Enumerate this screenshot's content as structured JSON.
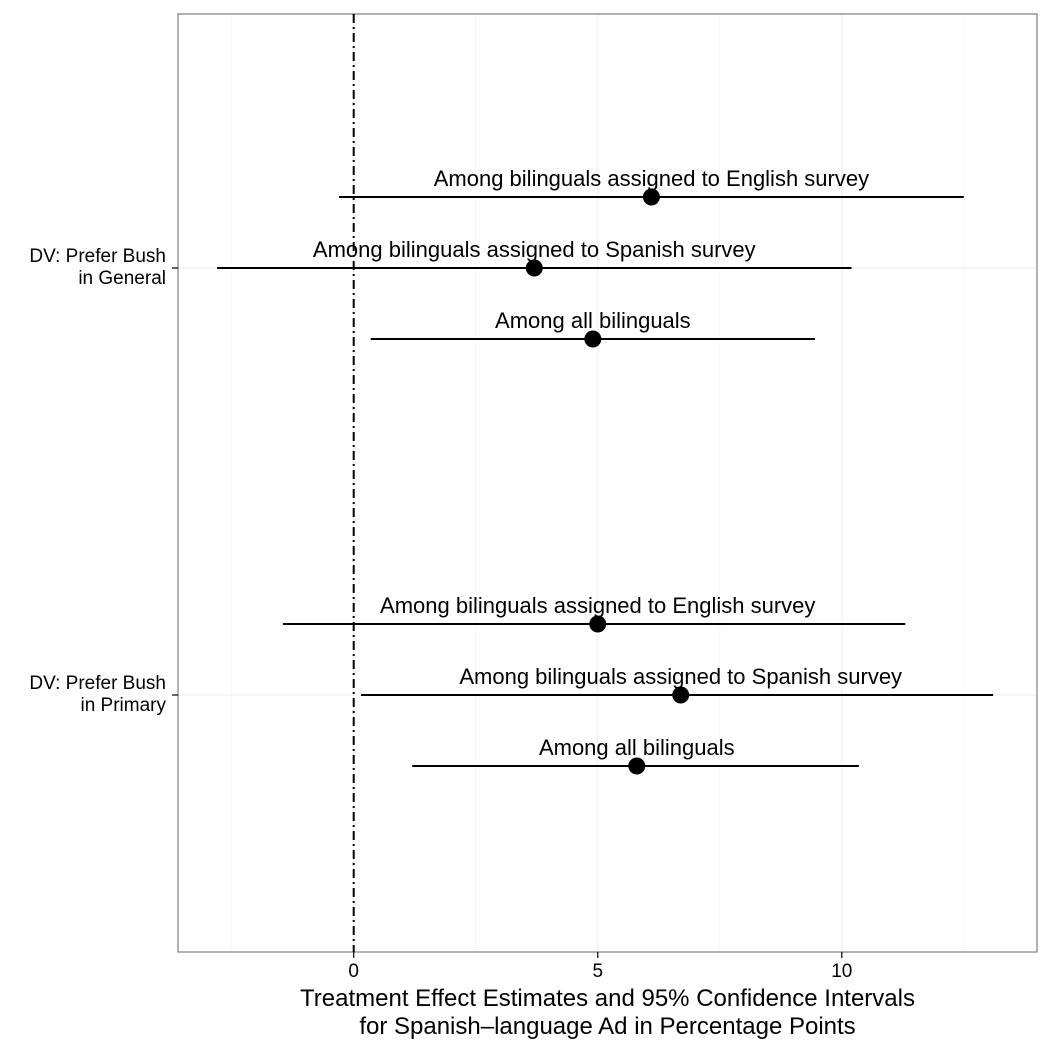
{
  "chart_data": {
    "type": "scatter",
    "title": "",
    "xlabel": [
      "Treatment Effect Estimates and 95% Confidence Intervals",
      "for Spanish–language Ad in Percentage Points"
    ],
    "ylabel": "",
    "xlim": [
      -3.6,
      14.0
    ],
    "x_ticks": [
      0,
      5,
      10
    ],
    "grid": true,
    "reference_line": {
      "x": 0,
      "style": "dotdash"
    },
    "groups": [
      {
        "label": [
          "DV: Prefer Bush",
          "in General"
        ],
        "estimates": [
          {
            "label": "Among bilinguals assigned to English survey",
            "estimate": 6.1,
            "ci": [
              -0.3,
              12.5
            ]
          },
          {
            "label": "Among bilinguals assigned to Spanish survey",
            "estimate": 3.7,
            "ci": [
              -2.8,
              10.2
            ]
          },
          {
            "label": "Among all bilinguals",
            "estimate": 4.9,
            "ci": [
              0.35,
              9.45
            ]
          }
        ]
      },
      {
        "label": [
          "DV: Prefer Bush",
          "in Primary"
        ],
        "estimates": [
          {
            "label": "Among bilinguals assigned to English survey",
            "estimate": 5.0,
            "ci": [
              -1.45,
              11.3
            ]
          },
          {
            "label": "Among bilinguals assigned to Spanish survey",
            "estimate": 6.7,
            "ci": [
              0.15,
              13.1
            ]
          },
          {
            "label": "Among all bilinguals",
            "estimate": 5.8,
            "ci": [
              1.2,
              10.35
            ]
          }
        ]
      }
    ]
  }
}
